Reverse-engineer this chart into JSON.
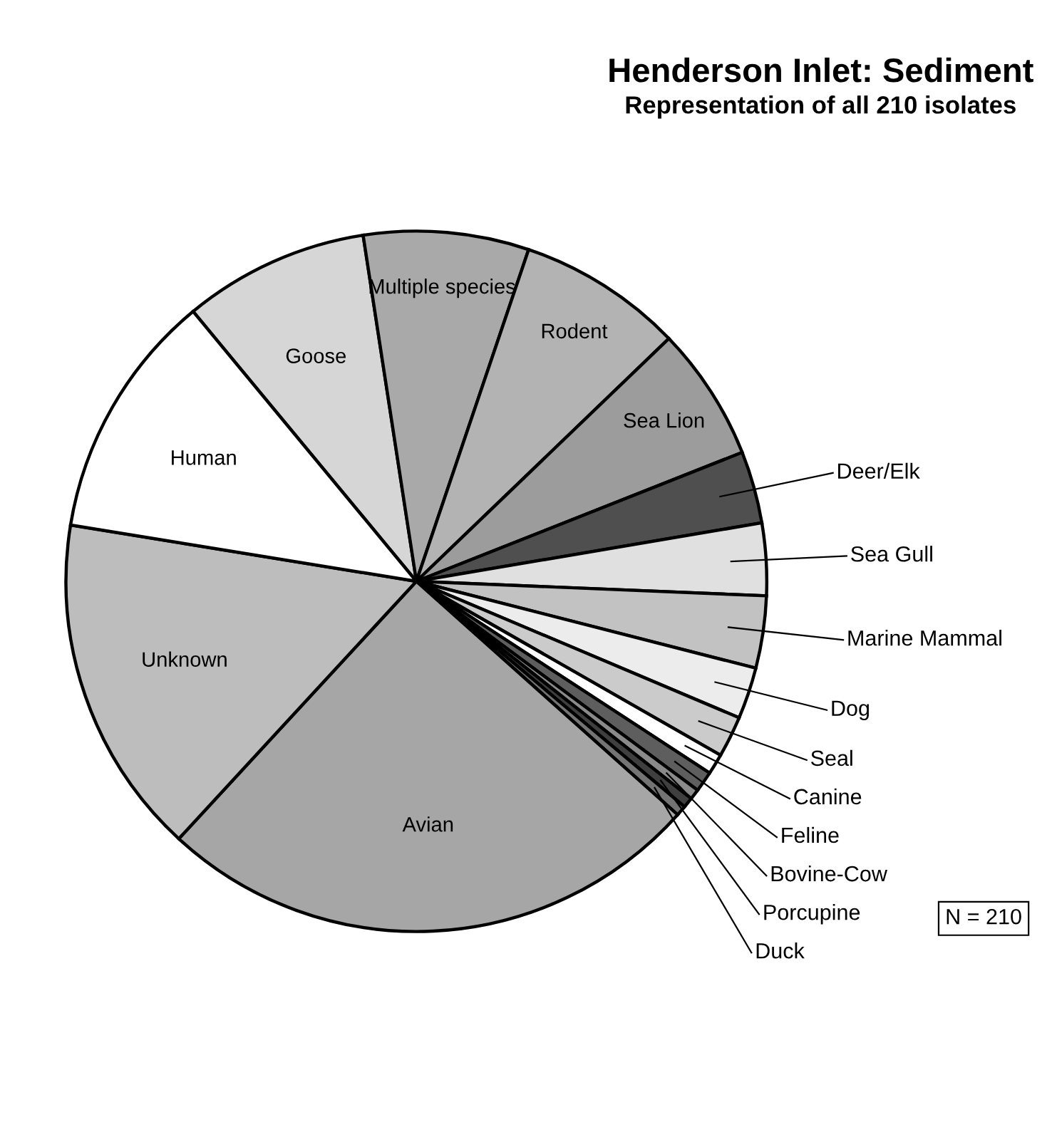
{
  "chart_data": {
    "type": "pie",
    "title": "Henderson Inlet: Sediment",
    "subtitle": "Representation of all 210 isolates",
    "categories": [
      "Goose",
      "Multiple species",
      "Rodent",
      "Sea Lion",
      "Deer/Elk",
      "Sea Gull",
      "Marine Mammal",
      "Dog",
      "Seal",
      "Canine",
      "Feline",
      "Bovine-Cow",
      "Porcupine",
      "Duck",
      "Avian",
      "Unknown",
      "Human"
    ],
    "values": [
      8.57,
      7.62,
      7.62,
      6.19,
      3.33,
      3.33,
      3.33,
      2.38,
      1.9,
      0.95,
      0.95,
      0.48,
      0.48,
      0.48,
      25.25,
      15.71,
      11.43
    ],
    "colors": [
      "#d6d6d6",
      "#a9a9a9",
      "#b3b3b3",
      "#9c9c9c",
      "#4f4f4f",
      "#e0e0e0",
      "#c2c2c2",
      "#ececec",
      "#cbcbcb",
      "#ffffff",
      "#5e5e5e",
      "#8a8a8a",
      "#3f3f3f",
      "#747474",
      "#a6a6a6",
      "#bdbdbd",
      "#ffffff"
    ],
    "annotations": [
      "N = 210"
    ]
  }
}
